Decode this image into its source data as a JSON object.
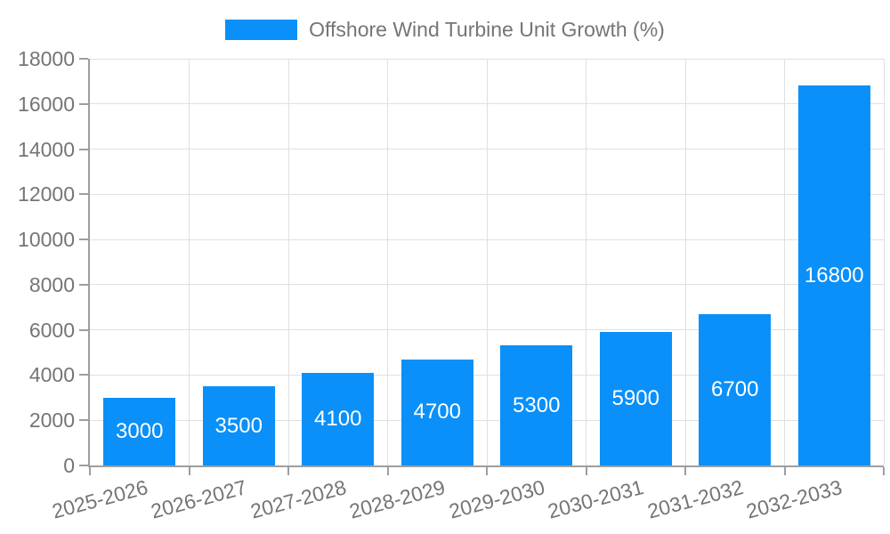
{
  "legend": {
    "label": "Offshore Wind Turbine Unit Growth (%)",
    "swatch_color": "#0a90f8"
  },
  "chart_data": {
    "type": "bar",
    "title": "Offshore Wind Turbine Unit Growth (%)",
    "categories": [
      "2025-2026",
      "2026-2027",
      "2027-2028",
      "2028-2029",
      "2029-2030",
      "2030-2031",
      "2031-2032",
      "2032-2033"
    ],
    "values": [
      3000,
      3500,
      4100,
      4700,
      5300,
      5900,
      6700,
      16800
    ],
    "series": [
      {
        "name": "Offshore Wind Turbine Unit Growth (%)",
        "values": [
          3000,
          3500,
          4100,
          4700,
          5300,
          5900,
          6700,
          16800
        ]
      }
    ],
    "xlabel": "",
    "ylabel": "",
    "ylim": [
      0,
      18000
    ],
    "ytick_step": 2000,
    "ytick_labels": [
      "0",
      "2000",
      "4000",
      "6000",
      "8000",
      "10000",
      "12000",
      "14000",
      "16000",
      "18000"
    ],
    "grid": true,
    "legend_position": "top-center",
    "bar_label_position": "inside-center",
    "xtick_label_rotation_deg": -15,
    "bar_color": "#0a90f8",
    "value_label_color": "#ffffff",
    "axis_color": "#9e9e9e",
    "grid_color": "#e0e0e0",
    "tick_label_color": "#757575"
  }
}
